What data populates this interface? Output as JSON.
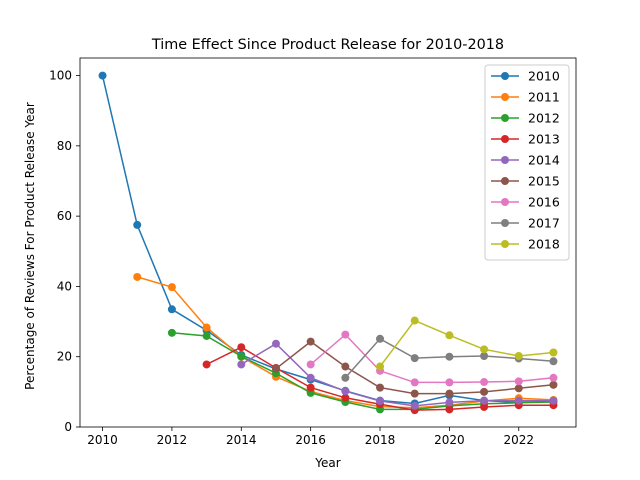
{
  "chart_data": {
    "type": "line",
    "title": "Time Effect Since Product Release for 2010-2018",
    "xlabel": "Year",
    "ylabel": "Percentage of Reviews For Product Release Year",
    "xlim": [
      2009.35,
      2023.65
    ],
    "ylim": [
      0,
      105
    ],
    "xticks": [
      2010,
      2012,
      2014,
      2016,
      2018,
      2020,
      2022
    ],
    "yticks": [
      0,
      20,
      40,
      60,
      80,
      100
    ],
    "grid": false,
    "legend_position": "top-right",
    "series": [
      {
        "name": "2010",
        "color": "#1f77b4",
        "x": [
          2010,
          2011,
          2012,
          2013,
          2014,
          2015,
          2016,
          2017,
          2018,
          2019,
          2020,
          2021,
          2022,
          2023
        ],
        "y": [
          100,
          57.5,
          33.5,
          27.5,
          20.5,
          16.5,
          13.5,
          10.3,
          7.5,
          6.7,
          9,
          7.5,
          7,
          7.3
        ]
      },
      {
        "name": "2011",
        "color": "#ff7f0e",
        "x": [
          2011,
          2012,
          2013,
          2014,
          2015,
          2016,
          2017,
          2018,
          2019,
          2020,
          2021,
          2022,
          2023
        ],
        "y": [
          42.7,
          39.8,
          28.3,
          20,
          14.3,
          10.1,
          7.5,
          5.8,
          5.5,
          6.2,
          7.4,
          8.2,
          7.7
        ]
      },
      {
        "name": "2012",
        "color": "#2ca02c",
        "x": [
          2012,
          2013,
          2014,
          2015,
          2016,
          2017,
          2018,
          2019,
          2020,
          2021,
          2022,
          2023
        ],
        "y": [
          26.8,
          25.9,
          20.1,
          15.3,
          9.7,
          7.1,
          5,
          5,
          6,
          6.6,
          6.9,
          7.1
        ]
      },
      {
        "name": "2013",
        "color": "#d62728",
        "x": [
          2013,
          2014,
          2015,
          2016,
          2017,
          2018,
          2019,
          2020,
          2021,
          2022,
          2023
        ],
        "y": [
          17.8,
          22.7,
          16.8,
          11.2,
          8.3,
          6.5,
          4.8,
          5,
          5.7,
          6.2,
          6.2
        ]
      },
      {
        "name": "2014",
        "color": "#9467bd",
        "x": [
          2014,
          2015,
          2016,
          2017,
          2018,
          2019,
          2020,
          2021,
          2022,
          2023
        ],
        "y": [
          17.8,
          23.7,
          14,
          10.2,
          7.4,
          6,
          7,
          7.5,
          7.5,
          7.5
        ]
      },
      {
        "name": "2015",
        "color": "#8c564b",
        "x": [
          2015,
          2016,
          2017,
          2018,
          2019,
          2020,
          2021,
          2022,
          2023
        ],
        "y": [
          16.6,
          24.3,
          17.2,
          11.2,
          9.5,
          9.5,
          10,
          11,
          12
        ]
      },
      {
        "name": "2016",
        "color": "#e377c2",
        "x": [
          2016,
          2017,
          2018,
          2019,
          2020,
          2021,
          2022,
          2023
        ],
        "y": [
          17.8,
          26.3,
          16,
          12.7,
          12.7,
          12.8,
          13,
          14
        ]
      },
      {
        "name": "2017",
        "color": "#7f7f7f",
        "x": [
          2017,
          2018,
          2019,
          2020,
          2021,
          2022,
          2023
        ],
        "y": [
          14,
          25.1,
          19.6,
          20,
          20.2,
          19.5,
          18.7
        ]
      },
      {
        "name": "2018",
        "color": "#bcbd22",
        "x": [
          2018,
          2019,
          2020,
          2021,
          2022,
          2023
        ],
        "y": [
          17.2,
          30.3,
          26.1,
          22.1,
          20.2,
          21.2
        ]
      }
    ]
  }
}
